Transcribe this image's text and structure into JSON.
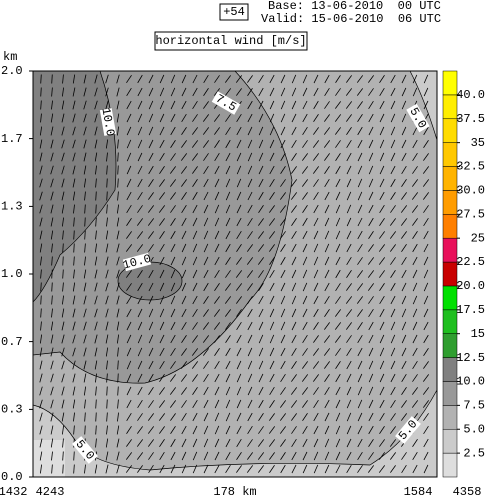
{
  "chart_data": {
    "type": "contour",
    "forecast_step": "+54",
    "base": "Base: 13-06-2010  00 UTC",
    "valid": "Valid: 15-06-2010  06 UTC",
    "title": "horizontal wind [m/s]",
    "ylabel": "km",
    "ylim": [
      0,
      2
    ],
    "yticks": [
      {
        "value": 0,
        "label": "0.0"
      },
      {
        "value": 0.333,
        "label": "0.3"
      },
      {
        "value": 0.667,
        "label": "0.7"
      },
      {
        "value": 1,
        "label": "1.0"
      },
      {
        "value": 1.333,
        "label": "1.3"
      },
      {
        "value": 1.667,
        "label": "1.7"
      },
      {
        "value": 2,
        "label": "2.0"
      }
    ],
    "x_labels": [
      "1432",
      "4243",
      "178 km",
      "1584",
      "4358"
    ],
    "contour_labels": [
      "10.0",
      "7.5",
      "5.0",
      "10.0",
      "5.0",
      "5.0"
    ],
    "colorbar": {
      "lim": [
        0,
        42.5
      ],
      "levels": [
        2.5,
        {
          "value": 5,
          "label": "5.0"
        },
        7.5,
        {
          "value": 10,
          "label": "10.0"
        },
        12.5,
        15,
        17.5,
        {
          "value": 20,
          "label": "20.0"
        },
        22.5,
        25,
        27.5,
        {
          "value": 30,
          "label": "30.0"
        },
        32.5,
        35,
        37.5,
        {
          "value": 40,
          "label": "40.0"
        }
      ],
      "colors": [
        "#dedede",
        "#cbcbcb",
        "#b2b2b2",
        "#999999",
        "#808080",
        "#2f9e2f",
        "#1fbf1f",
        "#00e000",
        "#c80000",
        "#e8105a",
        "#ff7f00",
        "#ff9c00",
        "#ffb400",
        "#ffc800",
        "#ffdc00",
        "#ffee00",
        "#ffff00"
      ]
    }
  }
}
